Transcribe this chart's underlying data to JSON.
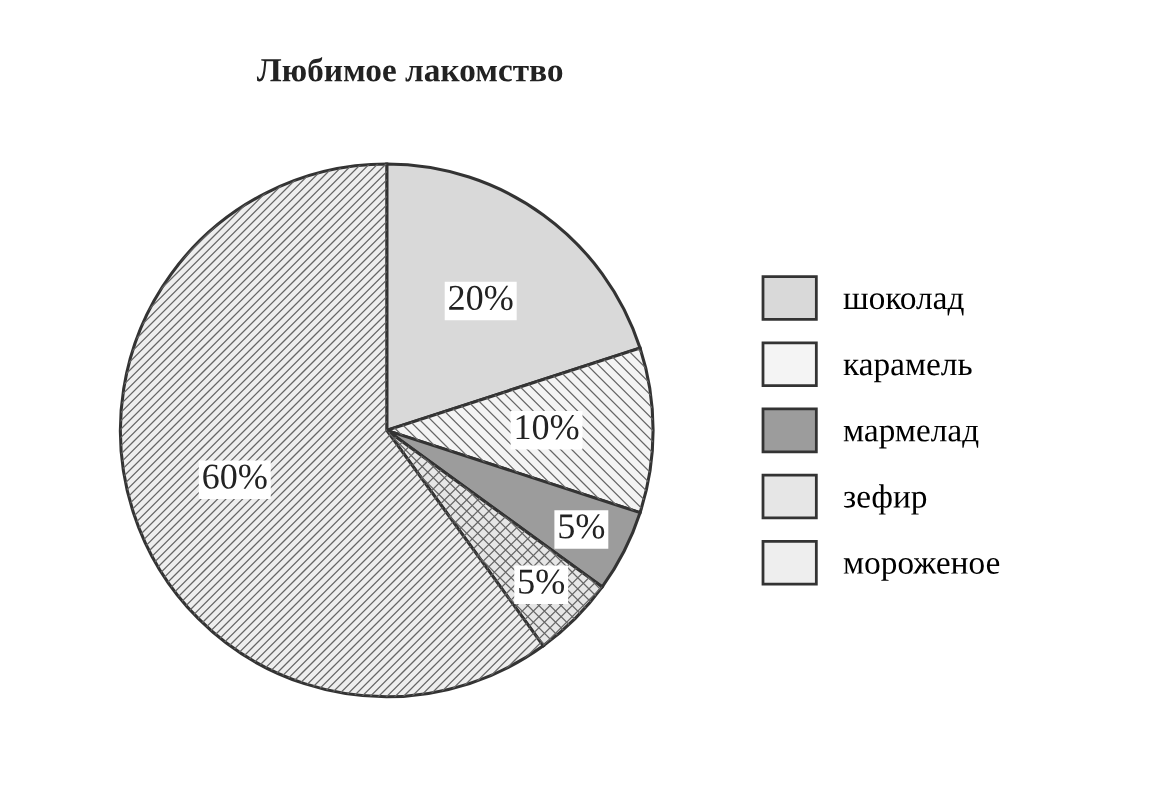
{
  "chart_data": {
    "type": "pie",
    "title": "Любимое лакомство",
    "categories": [
      "шоколад",
      "карамель",
      "мармелад",
      "зефир",
      "мороженое"
    ],
    "values": [
      20,
      10,
      5,
      5,
      60
    ],
    "colors": [
      "#d9d9d9",
      "#f4f4f4",
      "#9c9c9c",
      "#e6e6e6",
      "#eeeeee"
    ],
    "value_labels": [
      "20%",
      "10%",
      "5%",
      "5%",
      "60%"
    ],
    "legend": "right"
  }
}
